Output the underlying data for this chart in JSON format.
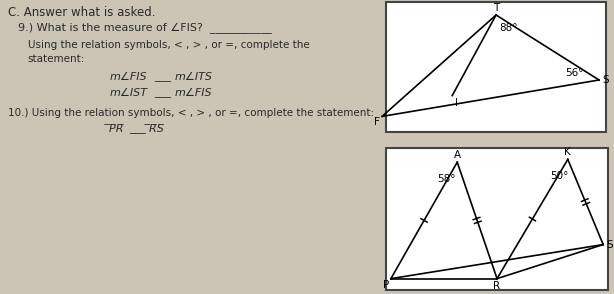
{
  "bg_color": "#ccc5b5",
  "title": "C. Answer what is asked.",
  "box1_color": "white",
  "box2_color": "white",
  "angle_88": "88°",
  "angle_56": "56°",
  "angle_58": "58°",
  "angle_50": "50°",
  "label_T": "T",
  "label_F": "F",
  "label_S": "S",
  "label_I": "I",
  "label_A": "A",
  "label_K": "K",
  "label_P": "P",
  "label_R": "R",
  "label_S2": "S"
}
